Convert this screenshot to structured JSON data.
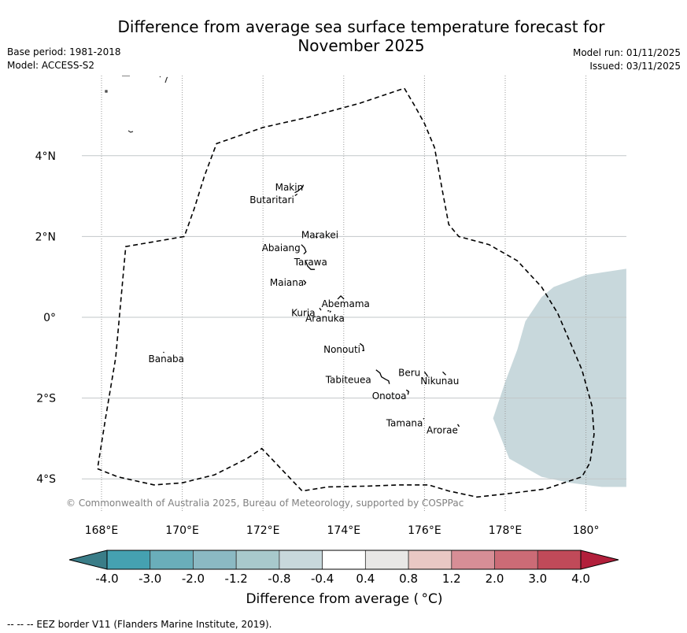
{
  "title_line1": "Difference from average sea surface temperature forecast for",
  "title_line2": "November 2025",
  "meta_left": [
    "Base period: 1981-2018",
    "Model: ACCESS-S2"
  ],
  "meta_right": [
    "Model run: 01/11/2025",
    "Issued: 03/11/2025"
  ],
  "copyright": "© Commonwealth of Australia 2025, Bureau of Meteorology, supported by COSPPac",
  "footer": "--  --  -- EEZ border V11 (Flanders Marine Institute, 2019).",
  "colorbar": {
    "label": "Difference from average ( °C)",
    "ticks": [
      "-4.0",
      "-3.0",
      "-2.0",
      "-1.2",
      "-0.8",
      "-0.4",
      "0.4",
      "0.8",
      "1.2",
      "2.0",
      "3.0",
      "4.0"
    ],
    "colors": [
      "#45a1b1",
      "#6aaeba",
      "#8bb9c3",
      "#a8c9cc",
      "#c8d8dc",
      "#ffffff",
      "#e8e7e6",
      "#e9c8c4",
      "#d78e96",
      "#cc6b76",
      "#c04a59"
    ],
    "extend_low_color": "#3a7d88",
    "extend_high_color": "#b21f3b"
  },
  "chart_data": {
    "type": "map",
    "title": "Difference from average sea surface temperature forecast for November 2025",
    "xlabel": "",
    "ylabel": "",
    "lon_range": [
      167.5,
      181
    ],
    "lat_range": [
      -5,
      6
    ],
    "x_ticks": [
      {
        "value": 168,
        "label": "168°E"
      },
      {
        "value": 170,
        "label": "170°E"
      },
      {
        "value": 172,
        "label": "172°E"
      },
      {
        "value": 174,
        "label": "174°E"
      },
      {
        "value": 176,
        "label": "176°E"
      },
      {
        "value": 178,
        "label": "178°E"
      },
      {
        "value": 180,
        "label": "180°"
      }
    ],
    "y_ticks": [
      {
        "value": 4,
        "label": "4°N"
      },
      {
        "value": 2,
        "label": "2°N"
      },
      {
        "value": 0,
        "label": "0°"
      },
      {
        "value": -2,
        "label": "2°S"
      },
      {
        "value": -4,
        "label": "4°S"
      }
    ],
    "grid": true,
    "anomaly_regions": [
      {
        "category": "-0.8 to -0.4",
        "color": "#c8d8dc",
        "polygon": [
          [
            181,
            1.2
          ],
          [
            180,
            1.05
          ],
          [
            179.2,
            0.75
          ],
          [
            178.9,
            0.5
          ],
          [
            178.5,
            -0.1
          ],
          [
            178.3,
            -0.8
          ],
          [
            178.0,
            -1.6
          ],
          [
            177.7,
            -2.5
          ],
          [
            178.1,
            -3.5
          ],
          [
            178.9,
            -3.95
          ],
          [
            179.6,
            -4.1
          ],
          [
            180.4,
            -4.2
          ],
          [
            181,
            -4.2
          ]
        ]
      }
    ],
    "eez_border": [
      [
        167.9,
        -3.75
      ],
      [
        168.4,
        -3.95
      ],
      [
        169.3,
        -4.15
      ],
      [
        170.0,
        -4.1
      ],
      [
        170.8,
        -3.9
      ],
      [
        171.6,
        -3.5
      ],
      [
        171.97,
        -3.25
      ],
      [
        172.4,
        -3.7
      ],
      [
        172.97,
        -4.3
      ],
      [
        173.6,
        -4.2
      ],
      [
        174.6,
        -4.18
      ],
      [
        175.4,
        -4.15
      ],
      [
        176.1,
        -4.15
      ],
      [
        176.6,
        -4.3
      ],
      [
        177.3,
        -4.45
      ],
      [
        178.2,
        -4.35
      ],
      [
        179.0,
        -4.25
      ],
      [
        179.9,
        -3.95
      ],
      [
        180.1,
        -3.6
      ],
      [
        180.2,
        -2.9
      ],
      [
        180.15,
        -2.2
      ],
      [
        179.9,
        -1.3
      ],
      [
        179.6,
        -0.6
      ],
      [
        179.3,
        0.1
      ],
      [
        178.9,
        0.75
      ],
      [
        178.3,
        1.4
      ],
      [
        177.6,
        1.8
      ],
      [
        176.85,
        2.0
      ],
      [
        176.6,
        2.3
      ],
      [
        176.45,
        3.1
      ],
      [
        176.25,
        4.2
      ],
      [
        176.0,
        4.8
      ],
      [
        175.75,
        5.25
      ],
      [
        175.5,
        5.67
      ],
      [
        174.4,
        5.3
      ],
      [
        173.1,
        4.95
      ],
      [
        172.0,
        4.7
      ],
      [
        170.85,
        4.3
      ],
      [
        170.55,
        3.5
      ],
      [
        170.3,
        2.7
      ],
      [
        170.05,
        2.0
      ],
      [
        168.6,
        1.75
      ],
      [
        168.35,
        -1.0
      ],
      [
        168.1,
        -2.5
      ],
      [
        167.9,
        -3.75
      ]
    ],
    "islands": [
      {
        "name": "Makin",
        "lon": 173.0,
        "lat": 3.28,
        "label_lon": 172.3,
        "label_lat": 3.22
      },
      {
        "name": "Butaritari",
        "lon": 172.85,
        "lat": 3.05,
        "label_lon": 171.67,
        "label_lat": 2.9
      },
      {
        "name": "Marakei",
        "lon": 173.3,
        "lat": 2.0,
        "label_lon": 172.95,
        "label_lat": 2.04
      },
      {
        "name": "Abaiang",
        "lon": 172.95,
        "lat": 1.8,
        "label_lon": 171.97,
        "label_lat": 1.72
      },
      {
        "name": "Tarawa",
        "lon": 173.05,
        "lat": 1.4,
        "label_lon": 172.77,
        "label_lat": 1.36
      },
      {
        "name": "Maiana",
        "lon": 173.0,
        "lat": 0.92,
        "label_lon": 172.17,
        "label_lat": 0.86
      },
      {
        "name": "Abemama",
        "lon": 173.85,
        "lat": 0.45,
        "label_lon": 173.45,
        "label_lat": 0.33
      },
      {
        "name": "Kuria",
        "lon": 173.4,
        "lat": 0.23,
        "label_lon": 172.7,
        "label_lat": 0.11
      },
      {
        "name": "Aranuka",
        "lon": 173.6,
        "lat": 0.16,
        "label_lon": 173.05,
        "label_lat": -0.03
      },
      {
        "name": "Nonouti",
        "lon": 174.4,
        "lat": -0.65,
        "label_lon": 173.5,
        "label_lat": -0.8
      },
      {
        "name": "Tabiteuea",
        "lon": 174.8,
        "lat": -1.3,
        "label_lon": 173.55,
        "label_lat": -1.55
      },
      {
        "name": "Beru",
        "lon": 176.0,
        "lat": -1.35,
        "label_lon": 175.35,
        "label_lat": -1.37
      },
      {
        "name": "Nikunau",
        "lon": 176.45,
        "lat": -1.35,
        "label_lon": 175.9,
        "label_lat": -1.58
      },
      {
        "name": "Onotoa",
        "lon": 175.55,
        "lat": -1.8,
        "label_lon": 174.7,
        "label_lat": -1.95
      },
      {
        "name": "Tamana",
        "lon": 175.97,
        "lat": -2.5,
        "label_lon": 175.05,
        "label_lat": -2.62
      },
      {
        "name": "Arorae",
        "lon": 176.82,
        "lat": -2.65,
        "label_lon": 176.05,
        "label_lat": -2.8
      },
      {
        "name": "Banaba",
        "lon": 169.53,
        "lat": -0.86,
        "label_lon": 169.16,
        "label_lat": -1.03
      }
    ]
  }
}
